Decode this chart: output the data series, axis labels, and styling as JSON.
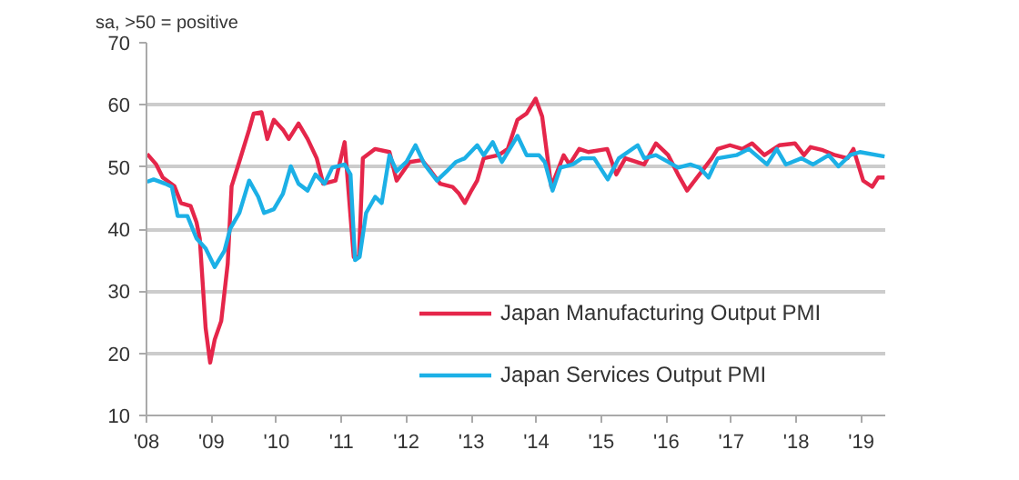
{
  "chart_data": {
    "type": "line",
    "subtitle": "sa, >50 = positive",
    "xlim": [
      2008,
      2019.37
    ],
    "ylim": [
      10,
      70
    ],
    "xticks": [
      {
        "value": 2008,
        "label": "'08"
      },
      {
        "value": 2009,
        "label": "'09"
      },
      {
        "value": 2010,
        "label": "'10"
      },
      {
        "value": 2011,
        "label": "'11"
      },
      {
        "value": 2012,
        "label": "'12"
      },
      {
        "value": 2013,
        "label": "'13"
      },
      {
        "value": 2014,
        "label": "'14"
      },
      {
        "value": 2015,
        "label": "'15"
      },
      {
        "value": 2016,
        "label": "'16"
      },
      {
        "value": 2017,
        "label": "'17"
      },
      {
        "value": 2018,
        "label": "'18"
      },
      {
        "value": 2019,
        "label": "'19"
      }
    ],
    "yticks": [
      10,
      20,
      30,
      40,
      50,
      60,
      70
    ],
    "grid": "y",
    "legend": "bottom",
    "line_style": "solid",
    "marker": "none",
    "series": [
      {
        "name": "Japan Manufacturing Output PMI",
        "color": "#e5264a",
        "x": [
          2008.01,
          2008.15,
          2008.25,
          2008.43,
          2008.53,
          2008.68,
          2008.77,
          2008.82,
          2008.91,
          2008.98,
          2009.05,
          2009.15,
          2009.25,
          2009.31,
          2009.43,
          2009.58,
          2009.65,
          2009.77,
          2009.86,
          2009.96,
          2010.1,
          2010.19,
          2010.34,
          2010.48,
          2010.62,
          2010.72,
          2010.91,
          2011.05,
          2011.19,
          2011.27,
          2011.33,
          2011.52,
          2011.74,
          2011.85,
          2012.05,
          2012.24,
          2012.38,
          2012.52,
          2012.71,
          2012.81,
          2012.9,
          2012.99,
          2013.09,
          2013.19,
          2013.42,
          2013.56,
          2013.71,
          2013.85,
          2013.99,
          2014.09,
          2014.23,
          2014.42,
          2014.51,
          2014.66,
          2014.8,
          2015.09,
          2015.23,
          2015.37,
          2015.66,
          2015.84,
          2016.03,
          2016.18,
          2016.32,
          2016.51,
          2016.7,
          2016.79,
          2016.98,
          2017.17,
          2017.32,
          2017.51,
          2017.74,
          2017.98,
          2018.12,
          2018.22,
          2018.41,
          2018.6,
          2018.79,
          2018.88,
          2019.03,
          2019.17,
          2019.26,
          2019.36
        ],
        "values": [
          52.1,
          50.4,
          48.3,
          46.9,
          44.2,
          43.7,
          41.1,
          38.5,
          24.1,
          18.5,
          22.2,
          25.2,
          34.4,
          46.9,
          50.9,
          56.0,
          58.6,
          58.8,
          54.5,
          57.6,
          56.0,
          54.5,
          57.0,
          54.5,
          51.4,
          47.3,
          47.8,
          54.0,
          35.5,
          35.5,
          51.4,
          52.9,
          52.4,
          47.8,
          50.8,
          51.1,
          49.3,
          47.3,
          46.8,
          45.7,
          44.2,
          46.0,
          47.8,
          51.4,
          51.9,
          52.9,
          57.6,
          58.6,
          61.0,
          58.1,
          46.8,
          51.9,
          50.4,
          52.9,
          52.4,
          52.9,
          48.8,
          51.4,
          50.4,
          53.8,
          51.9,
          48.8,
          46.2,
          48.8,
          51.4,
          52.9,
          53.5,
          52.9,
          53.8,
          51.9,
          53.5,
          53.8,
          51.9,
          53.2,
          52.7,
          51.9,
          51.4,
          52.9,
          47.8,
          46.8,
          48.3,
          48.3
        ]
      },
      {
        "name": "Japan Services Output PMI",
        "color": "#1cb0e6",
        "x": [
          2008.01,
          2008.11,
          2008.29,
          2008.39,
          2008.48,
          2008.63,
          2008.77,
          2008.91,
          2009.05,
          2009.2,
          2009.29,
          2009.43,
          2009.58,
          2009.72,
          2009.81,
          2009.96,
          2010.1,
          2010.22,
          2010.34,
          2010.48,
          2010.6,
          2010.74,
          2010.86,
          2011.05,
          2011.14,
          2011.21,
          2011.28,
          2011.38,
          2011.52,
          2011.62,
          2011.74,
          2011.85,
          2012.0,
          2012.14,
          2012.28,
          2012.47,
          2012.62,
          2012.76,
          2012.9,
          2013.09,
          2013.19,
          2013.33,
          2013.47,
          2013.71,
          2013.85,
          2014.04,
          2014.13,
          2014.25,
          2014.37,
          2014.56,
          2014.7,
          2014.89,
          2015.1,
          2015.27,
          2015.56,
          2015.66,
          2015.84,
          2016.03,
          2016.18,
          2016.37,
          2016.51,
          2016.65,
          2016.79,
          2017.08,
          2017.27,
          2017.55,
          2017.7,
          2017.84,
          2018.08,
          2018.26,
          2018.5,
          2018.65,
          2018.83,
          2018.98,
          2019.36
        ],
        "values": [
          47.6,
          48.0,
          47.3,
          46.8,
          42.1,
          42.1,
          38.5,
          36.9,
          33.9,
          36.5,
          40.1,
          42.6,
          47.8,
          45.2,
          42.6,
          43.2,
          45.7,
          50.1,
          47.3,
          46.2,
          48.8,
          47.3,
          49.9,
          50.4,
          48.8,
          35.0,
          35.5,
          42.6,
          45.2,
          44.2,
          51.9,
          49.3,
          50.8,
          53.5,
          50.4,
          47.8,
          49.3,
          50.8,
          51.4,
          53.5,
          51.9,
          54.0,
          50.8,
          55.0,
          51.9,
          51.9,
          50.8,
          46.2,
          49.9,
          50.4,
          51.4,
          51.4,
          48.0,
          51.4,
          53.5,
          51.4,
          51.9,
          50.8,
          49.9,
          50.4,
          49.9,
          48.3,
          51.4,
          51.9,
          52.9,
          50.4,
          52.9,
          50.4,
          51.4,
          50.4,
          51.9,
          50.1,
          51.9,
          52.4,
          51.7
        ]
      }
    ]
  }
}
